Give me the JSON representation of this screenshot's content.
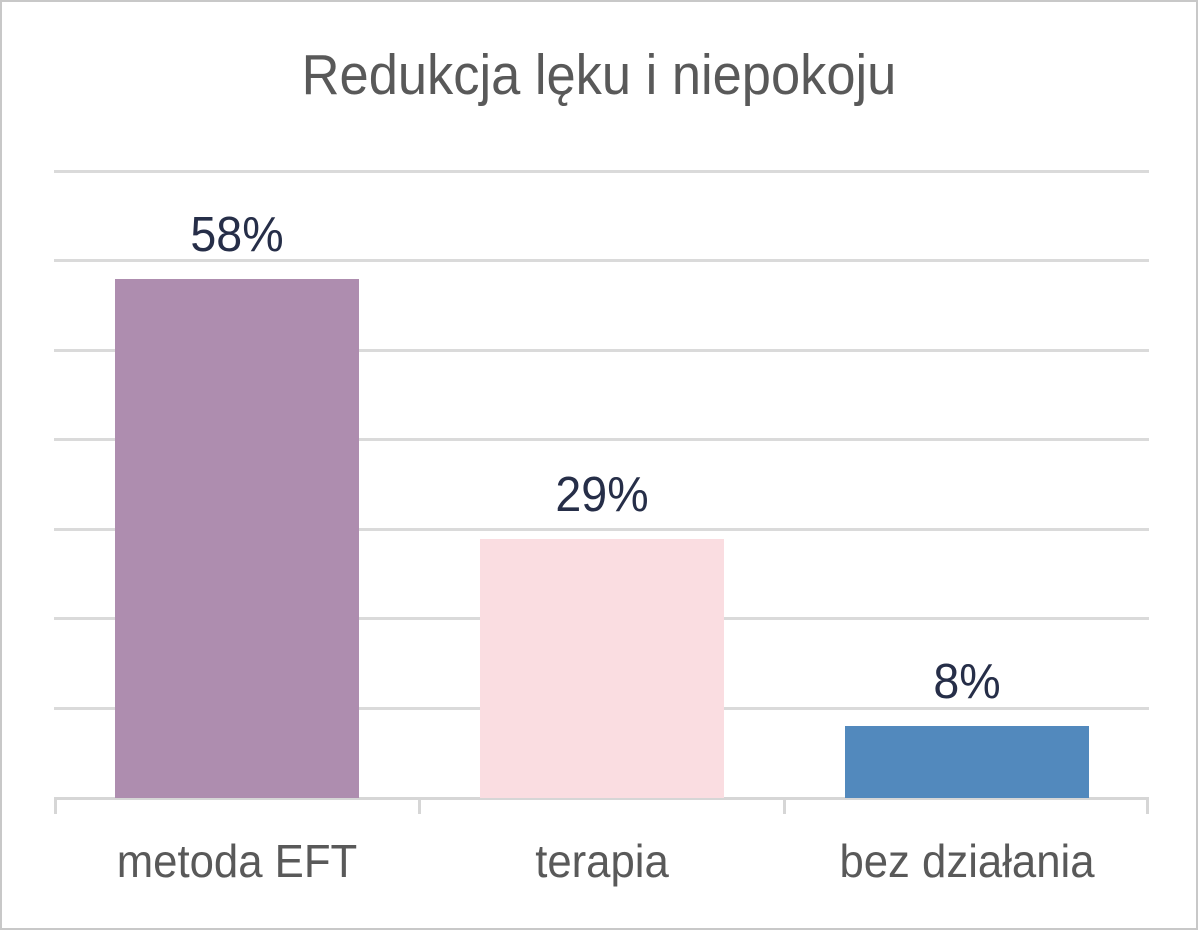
{
  "title": "Redukcja lęku i niepokoju",
  "chart_data": {
    "type": "bar",
    "title": "Redukcja lęku i niepokoju",
    "categories": [
      "metoda EFT",
      "terapia",
      "bez działania"
    ],
    "values": [
      58,
      29,
      8
    ],
    "data_labels": [
      "58%",
      "29%",
      "8%"
    ],
    "bar_colors": [
      "#ae8daf",
      "#fadde1",
      "#5289bd"
    ],
    "xlabel": "",
    "ylabel": "",
    "ylim": [
      0,
      70
    ],
    "gridline_step": 10,
    "grid": true,
    "legend": false,
    "y_tick_labels_visible": false,
    "gridline_color": "#dadada",
    "title_color": "#595959",
    "category_label_color": "#595959",
    "data_label_color": "#262e48",
    "page_border_color": "#c8c8c8"
  }
}
